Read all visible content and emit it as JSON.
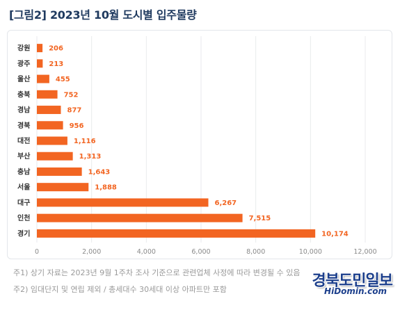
{
  "title": "[그림2]  2023년 10월 도시별 입주물량",
  "chart_data": {
    "type": "bar",
    "orientation": "horizontal",
    "categories": [
      "강원",
      "광주",
      "울산",
      "충북",
      "경남",
      "경북",
      "대전",
      "부산",
      "충남",
      "서울",
      "대구",
      "인천",
      "경기"
    ],
    "values": [
      206,
      213,
      455,
      752,
      877,
      956,
      1116,
      1313,
      1643,
      1888,
      6267,
      7515,
      10174
    ],
    "value_labels": [
      "206",
      "213",
      "455",
      "752",
      "877",
      "956",
      "1,116",
      "1,313",
      "1,643",
      "1,888",
      "6,267",
      "7,515",
      "10,174"
    ],
    "xlim": [
      0,
      12000
    ],
    "x_ticks": [
      0,
      2000,
      4000,
      6000,
      8000,
      10000,
      12000
    ],
    "x_tick_labels": [
      "0",
      "2,000",
      "4,000",
      "6,000",
      "8,000",
      "10,000",
      "12,000"
    ],
    "grid": true,
    "bar_color": "#f26522"
  },
  "notes": {
    "note1": "주1) 상기 자료는 2023년 9월 1주차 조사 기준으로 관련업체 사정에 따라 변경될 수 있음",
    "note2": "주2) 임대단지 및 연립 제외 / 총세대수 30세대 이상 아파트만 포함"
  },
  "watermark": {
    "main": "경북도민일보",
    "sub": "HiDomin.com"
  }
}
